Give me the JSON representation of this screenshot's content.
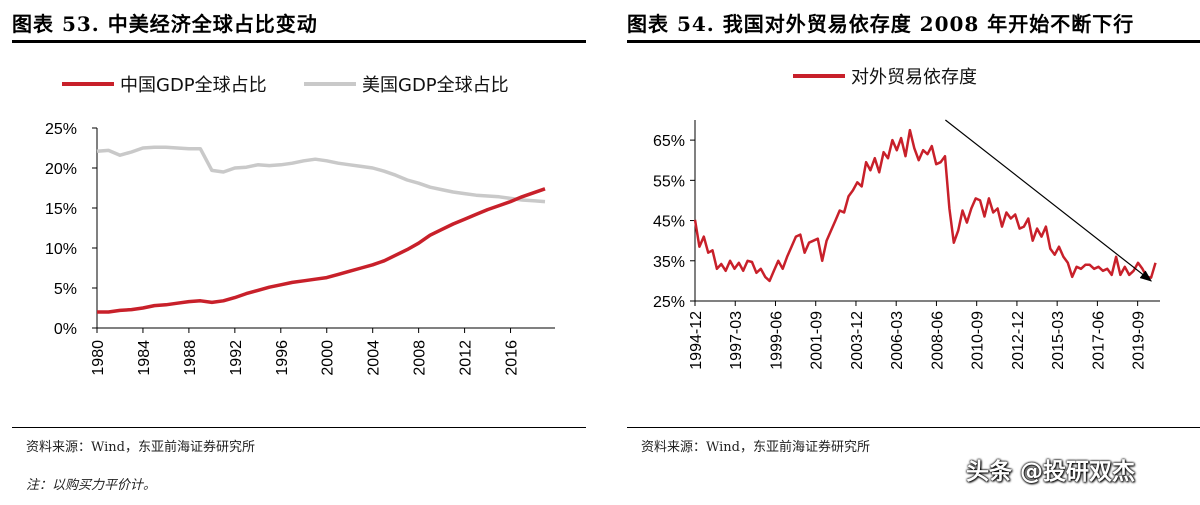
{
  "left": {
    "title": "图表 53. 中美经济全球占比变动",
    "source": "资料来源：Wind，东亚前海证券研究所",
    "note": "注：以购买力平价计。",
    "chart_data": {
      "type": "line",
      "x": [
        1980,
        1981,
        1982,
        1983,
        1984,
        1985,
        1986,
        1987,
        1988,
        1989,
        1990,
        1991,
        1992,
        1993,
        1994,
        1995,
        1996,
        1997,
        1998,
        1999,
        2000,
        2001,
        2002,
        2003,
        2004,
        2005,
        2006,
        2007,
        2008,
        2009,
        2010,
        2011,
        2012,
        2013,
        2014,
        2015,
        2016,
        2017,
        2018,
        2019
      ],
      "x_tick_labels": [
        "1980",
        "1984",
        "1988",
        "1992",
        "1996",
        "2000",
        "2004",
        "2008",
        "2012",
        "2016"
      ],
      "y_tick_labels": [
        "0%",
        "5%",
        "10%",
        "15%",
        "20%",
        "25%"
      ],
      "ylim": [
        0,
        25
      ],
      "legend_position": "top",
      "grid": false,
      "series": [
        {
          "name": "中国GDP全球占比",
          "color": "#c8202a",
          "values": [
            2.0,
            2.0,
            2.2,
            2.3,
            2.5,
            2.8,
            2.9,
            3.1,
            3.3,
            3.4,
            3.2,
            3.4,
            3.8,
            4.3,
            4.7,
            5.1,
            5.4,
            5.7,
            5.9,
            6.1,
            6.3,
            6.7,
            7.1,
            7.5,
            7.9,
            8.4,
            9.1,
            9.8,
            10.6,
            11.6,
            12.3,
            13.0,
            13.6,
            14.2,
            14.8,
            15.3,
            15.8,
            16.4,
            16.9,
            17.4
          ]
        },
        {
          "name": "美国GDP全球占比",
          "color": "#c9c9c9",
          "values": [
            22.1,
            22.2,
            21.6,
            22.0,
            22.5,
            22.6,
            22.6,
            22.5,
            22.4,
            22.4,
            19.7,
            19.5,
            20.0,
            20.1,
            20.4,
            20.3,
            20.4,
            20.6,
            20.9,
            21.1,
            20.9,
            20.6,
            20.4,
            20.2,
            20.0,
            19.6,
            19.1,
            18.5,
            18.1,
            17.6,
            17.3,
            17.0,
            16.8,
            16.6,
            16.5,
            16.4,
            16.2,
            16.0,
            15.9,
            15.8
          ]
        }
      ]
    }
  },
  "right": {
    "title": "图表 54. 我国对外贸易依存度 2008 年开始不断下行",
    "source": "资料来源：Wind，东亚前海证券研究所",
    "chart_data": {
      "type": "line",
      "x_start": "1994-12",
      "x_end": "2020-12",
      "x_tick_labels": [
        "1994-12",
        "1997-03",
        "1999-06",
        "2001-09",
        "2003-12",
        "2006-03",
        "2008-06",
        "2010-09",
        "2012-12",
        "2015-03",
        "2017-06",
        "2019-09"
      ],
      "y_tick_labels": [
        "25%",
        "35%",
        "45%",
        "55%",
        "65%"
      ],
      "ylim": [
        25,
        70
      ],
      "legend_position": "top-left",
      "grid": false,
      "trend_arrow": {
        "from": [
          "2008-12",
          70
        ],
        "to": [
          "2020-06",
          30
        ]
      },
      "series": [
        {
          "name": "对外贸易依存度",
          "color": "#c8202a",
          "values": [
            45.2,
            38.5,
            41.0,
            37.0,
            37.6,
            33.0,
            34.2,
            32.5,
            35.0,
            33.0,
            34.5,
            32.5,
            35.0,
            34.7,
            32.0,
            33.0,
            31.0,
            30.0,
            32.5,
            35.0,
            33.0,
            36.0,
            38.5,
            41.0,
            41.5,
            37.0,
            39.5,
            40.0,
            40.5,
            35.0,
            40.0,
            42.5,
            45.0,
            47.5,
            47.0,
            51.0,
            52.5,
            54.5,
            53.5,
            59.5,
            57.5,
            60.5,
            57.0,
            62.0,
            60.5,
            65.0,
            62.5,
            65.5,
            61.0,
            67.5,
            63.0,
            60.0,
            62.5,
            61.5,
            63.5,
            59.0,
            59.5,
            61.0,
            48.0,
            39.5,
            42.5,
            47.5,
            44.5,
            48.0,
            50.5,
            50.0,
            46.0,
            50.5,
            47.0,
            48.0,
            43.5,
            47.0,
            45.5,
            46.5,
            43.0,
            43.5,
            45.5,
            40.0,
            43.0,
            41.0,
            43.5,
            38.0,
            36.5,
            38.5,
            36.0,
            34.5,
            31.0,
            33.5,
            33.0,
            34.0,
            34.0,
            33.0,
            33.5,
            32.5,
            33.0,
            31.5,
            36.0,
            31.5,
            33.5,
            31.5,
            32.5,
            34.5,
            33.0,
            31.0,
            30.8,
            34.5
          ]
        }
      ]
    }
  },
  "watermark": "头条 @投研双杰"
}
